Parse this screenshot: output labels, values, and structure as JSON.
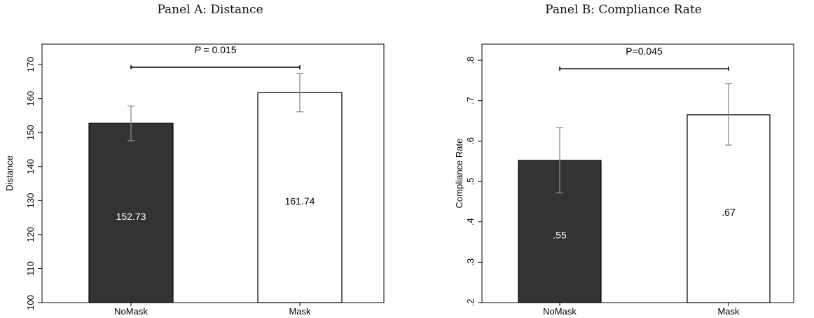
{
  "chart_data": [
    {
      "type": "bar",
      "title": "Panel A: Distance",
      "categories": [
        "NoMask",
        "Mask"
      ],
      "values": [
        152.73,
        161.74
      ],
      "value_labels": [
        "152.73",
        "161.74"
      ],
      "ci_low": [
        147.6,
        156.1
      ],
      "ci_high": [
        157.8,
        167.4
      ],
      "xlabel": "",
      "ylabel": "Distance",
      "ylim": [
        100,
        176
      ],
      "yticks": [
        100,
        110,
        120,
        130,
        140,
        150,
        160,
        170
      ],
      "ytick_labels": [
        "100",
        "110",
        "120",
        "130",
        "140",
        "150",
        "160",
        "170"
      ],
      "bar_colors": [
        "#333333",
        "#ffffff"
      ],
      "annotation": "P = 0.015",
      "annotation_level": 169.2,
      "grid": false,
      "legend": "none"
    },
    {
      "type": "bar",
      "title": "Panel B: Compliance Rate",
      "categories": [
        "NoMask",
        "Mask"
      ],
      "values": [
        0.552,
        0.665
      ],
      "value_labels": [
        ".55",
        ".67"
      ],
      "ci_low": [
        0.472,
        0.59
      ],
      "ci_high": [
        0.633,
        0.742
      ],
      "xlabel": "",
      "ylabel": "Compliance Rate",
      "ylim": [
        0.2,
        0.84
      ],
      "yticks": [
        0.2,
        0.3,
        0.4,
        0.5,
        0.6,
        0.7,
        0.8
      ],
      "ytick_labels": [
        ".2",
        ".3",
        ".4",
        ".5",
        ".6",
        ".7",
        ".8"
      ],
      "bar_colors": [
        "#333333",
        "#ffffff"
      ],
      "annotation": "P=0.045",
      "annotation_level": 0.779,
      "grid": false,
      "legend": "none"
    }
  ]
}
